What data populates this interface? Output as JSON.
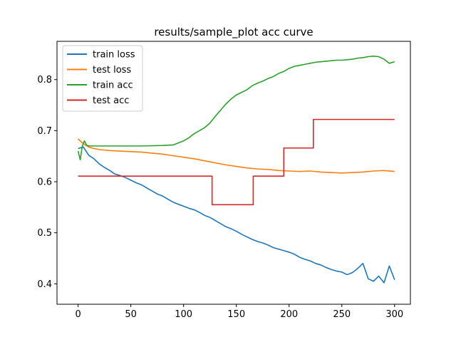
{
  "chart_data": {
    "type": "line",
    "title": "results/sample_plot acc curve",
    "xlabel": "",
    "ylabel": "",
    "xlim": [
      -20,
      315
    ],
    "ylim": [
      0.36,
      0.875
    ],
    "xticks": [
      0,
      50,
      100,
      150,
      200,
      250,
      300
    ],
    "yticks": [
      0.4,
      0.5,
      0.6,
      0.7,
      0.8
    ],
    "grid": false,
    "legend_position": "top-left",
    "colors": {
      "train_loss": "#1f77b4",
      "test_loss": "#ff7f0e",
      "train_acc": "#2ca02c",
      "test_acc": "#d62728"
    },
    "series": [
      {
        "name": "train loss",
        "color": "#1f77b4",
        "x": [
          0,
          5,
          10,
          15,
          20,
          25,
          30,
          35,
          40,
          45,
          50,
          55,
          60,
          65,
          70,
          75,
          80,
          85,
          90,
          95,
          100,
          105,
          110,
          115,
          120,
          125,
          130,
          135,
          140,
          145,
          150,
          155,
          160,
          165,
          170,
          175,
          180,
          185,
          190,
          195,
          200,
          205,
          210,
          215,
          220,
          225,
          230,
          235,
          240,
          245,
          250,
          255,
          260,
          265,
          270,
          275,
          280,
          285,
          290,
          295,
          300
        ],
        "y": [
          0.665,
          0.668,
          0.652,
          0.645,
          0.635,
          0.628,
          0.622,
          0.615,
          0.612,
          0.608,
          0.603,
          0.598,
          0.594,
          0.588,
          0.582,
          0.576,
          0.572,
          0.566,
          0.56,
          0.556,
          0.552,
          0.548,
          0.545,
          0.54,
          0.534,
          0.53,
          0.524,
          0.518,
          0.512,
          0.508,
          0.503,
          0.497,
          0.492,
          0.487,
          0.483,
          0.48,
          0.476,
          0.471,
          0.468,
          0.465,
          0.462,
          0.458,
          0.452,
          0.448,
          0.445,
          0.44,
          0.437,
          0.432,
          0.428,
          0.425,
          0.423,
          0.418,
          0.422,
          0.43,
          0.44,
          0.41,
          0.405,
          0.415,
          0.402,
          0.435,
          0.408
        ]
      },
      {
        "name": "test loss",
        "color": "#ff7f0e",
        "x": [
          0,
          3,
          6,
          10,
          15,
          20,
          25,
          30,
          40,
          50,
          60,
          70,
          80,
          90,
          100,
          110,
          120,
          130,
          140,
          150,
          160,
          170,
          180,
          190,
          200,
          210,
          220,
          230,
          240,
          250,
          260,
          270,
          280,
          290,
          300
        ],
        "y": [
          0.684,
          0.678,
          0.673,
          0.668,
          0.665,
          0.663,
          0.662,
          0.661,
          0.66,
          0.659,
          0.658,
          0.656,
          0.654,
          0.651,
          0.648,
          0.645,
          0.641,
          0.637,
          0.633,
          0.63,
          0.627,
          0.625,
          0.624,
          0.622,
          0.621,
          0.62,
          0.621,
          0.619,
          0.618,
          0.617,
          0.618,
          0.619,
          0.621,
          0.622,
          0.62
        ]
      },
      {
        "name": "train acc",
        "color": "#2ca02c",
        "x": [
          0,
          2,
          4,
          6,
          8,
          10,
          15,
          20,
          40,
          60,
          80,
          90,
          95,
          100,
          105,
          110,
          115,
          120,
          125,
          130,
          135,
          140,
          145,
          150,
          155,
          160,
          165,
          170,
          175,
          180,
          185,
          190,
          195,
          200,
          205,
          210,
          215,
          220,
          225,
          230,
          235,
          240,
          245,
          250,
          255,
          260,
          265,
          270,
          275,
          280,
          285,
          290,
          295,
          300
        ],
        "y": [
          0.66,
          0.643,
          0.67,
          0.68,
          0.672,
          0.67,
          0.67,
          0.67,
          0.67,
          0.67,
          0.671,
          0.672,
          0.676,
          0.68,
          0.686,
          0.694,
          0.7,
          0.706,
          0.715,
          0.728,
          0.74,
          0.752,
          0.762,
          0.77,
          0.775,
          0.78,
          0.788,
          0.793,
          0.797,
          0.802,
          0.806,
          0.812,
          0.816,
          0.822,
          0.826,
          0.828,
          0.83,
          0.832,
          0.834,
          0.835,
          0.836,
          0.837,
          0.838,
          0.838,
          0.839,
          0.84,
          0.842,
          0.843,
          0.845,
          0.846,
          0.845,
          0.84,
          0.832,
          0.835
        ]
      },
      {
        "name": "test acc",
        "color": "#d62728",
        "x": [
          0,
          127,
          127,
          166,
          166,
          195,
          195,
          223,
          223,
          226,
          226,
          300
        ],
        "y": [
          0.611,
          0.611,
          0.555,
          0.555,
          0.611,
          0.611,
          0.666,
          0.666,
          0.722,
          0.722,
          0.722,
          0.722
        ]
      }
    ]
  }
}
